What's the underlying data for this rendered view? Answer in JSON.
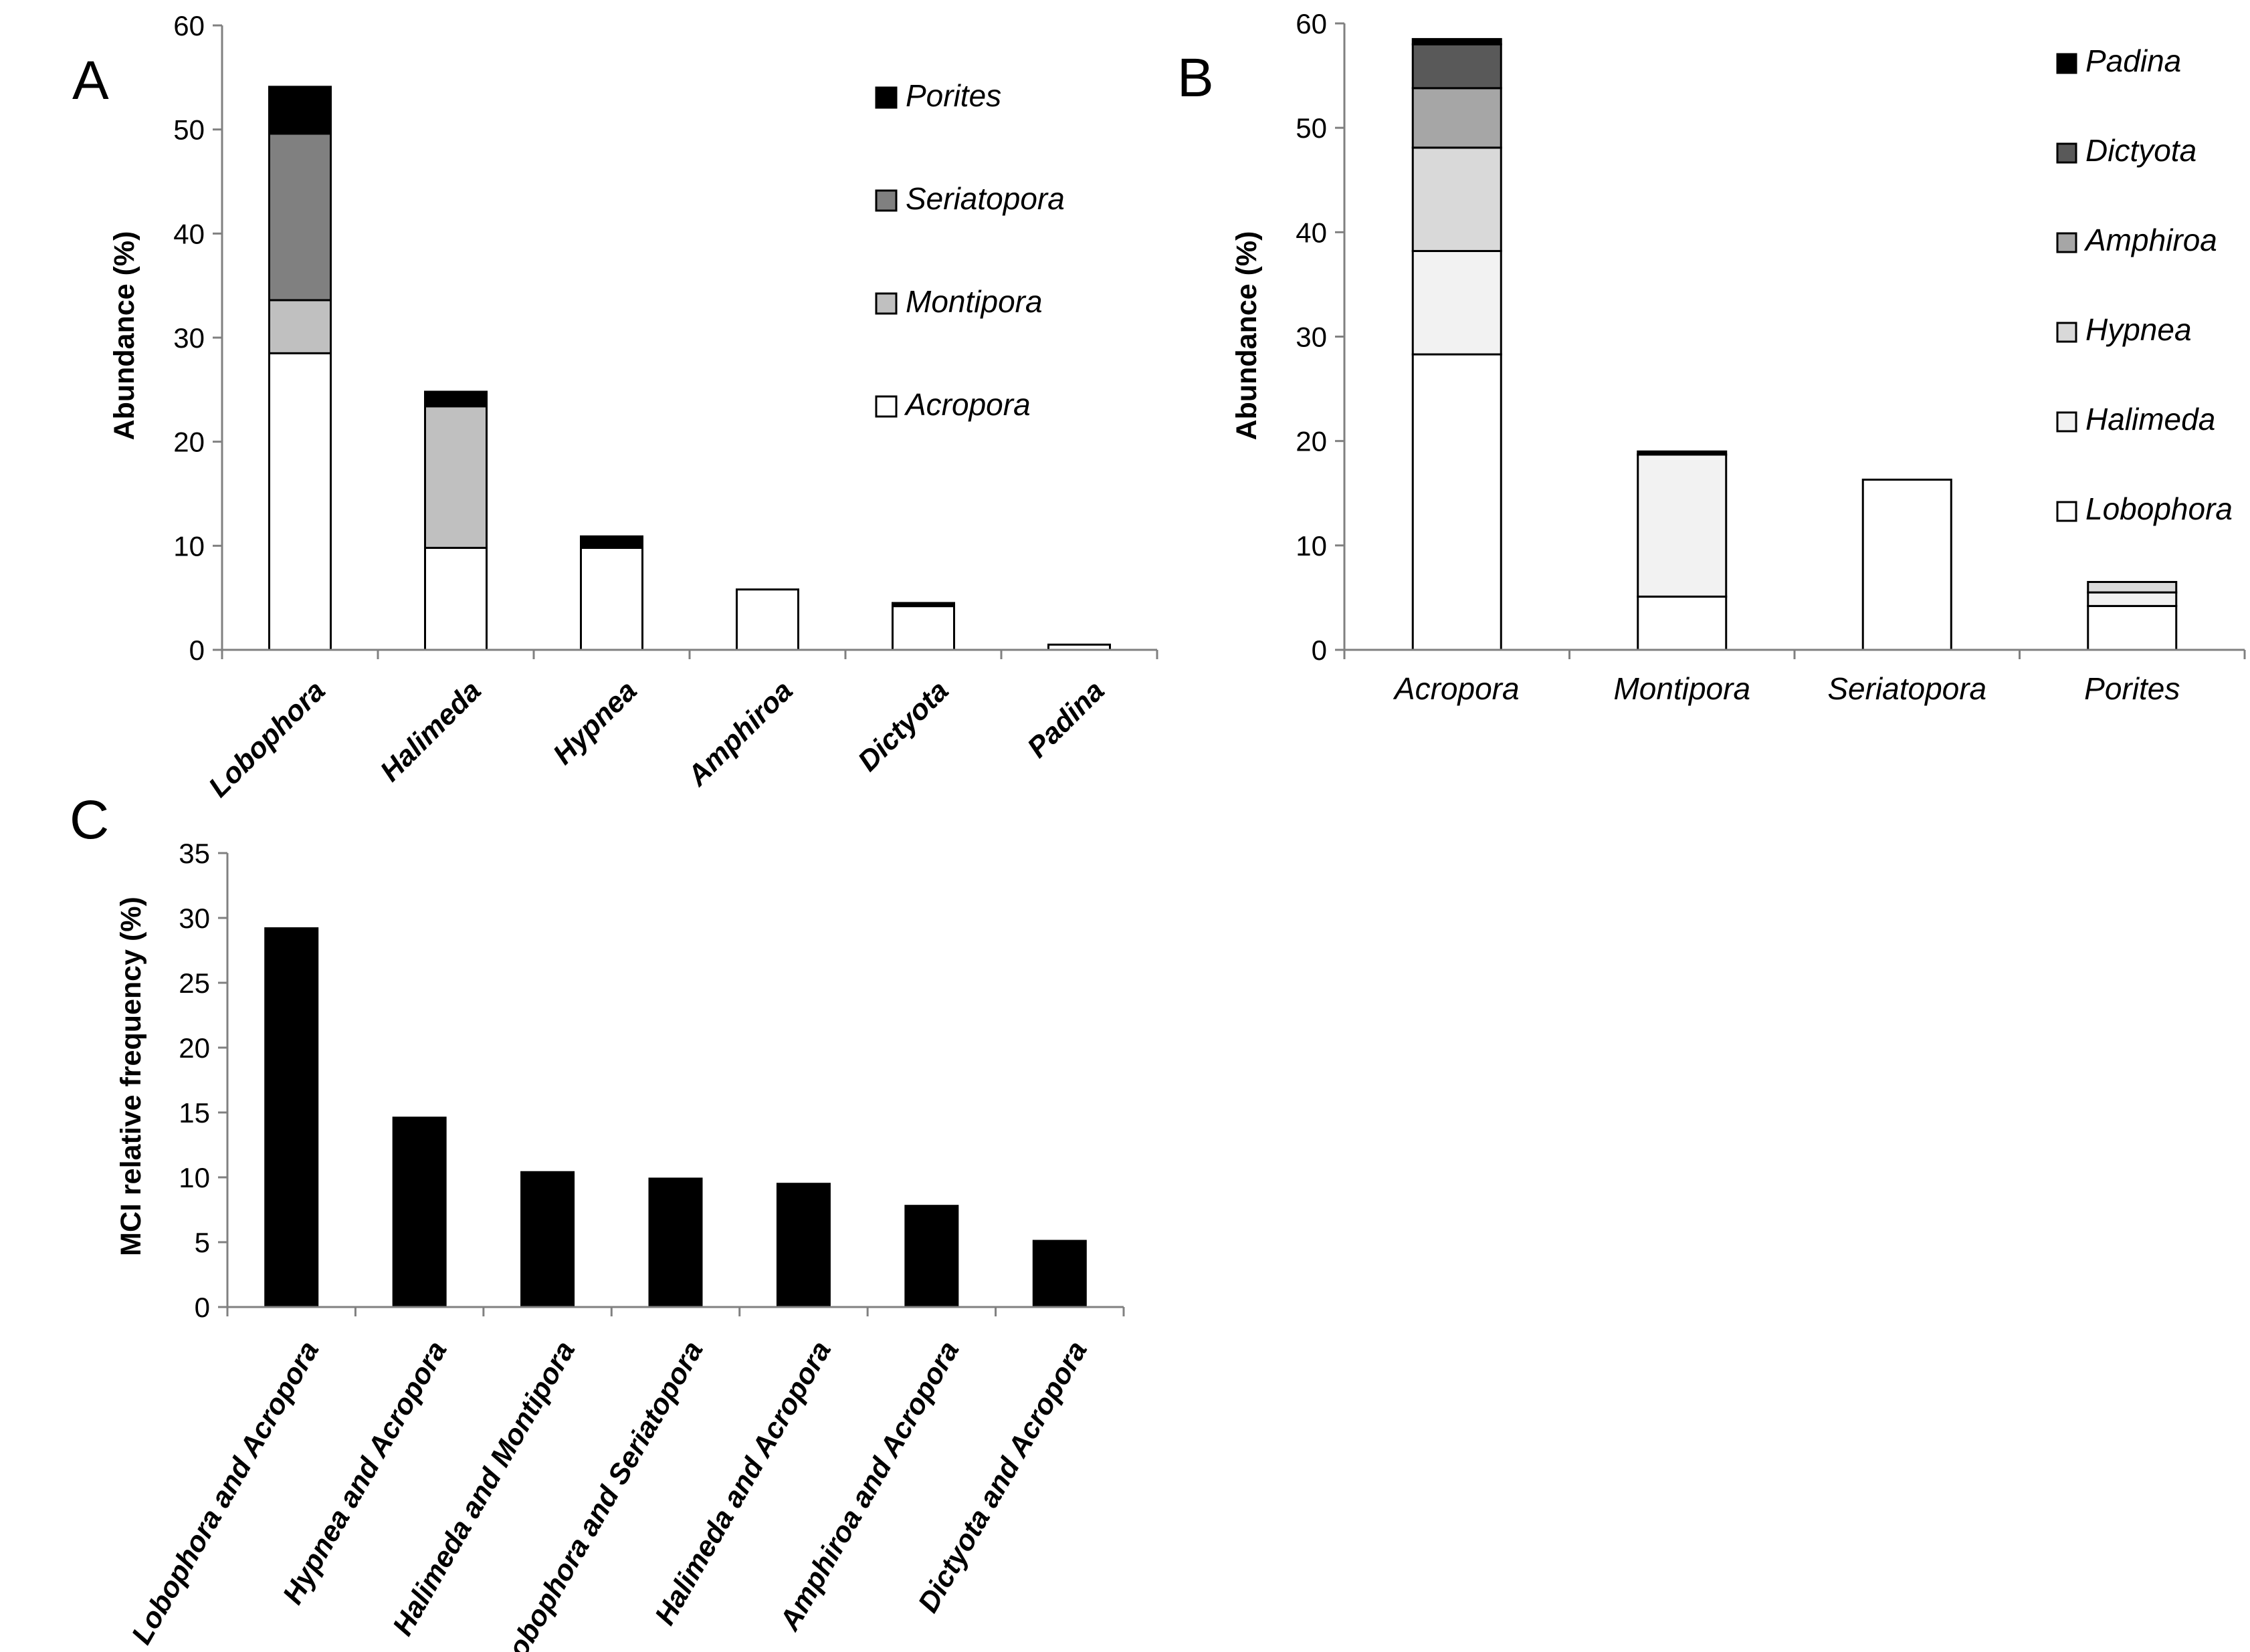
{
  "colors": {
    "Acropora": "#ffffff",
    "Montipora": "#c0c0c0",
    "Seriatopora": "#808080",
    "Porites": "#000000",
    "Lobophora": "#ffffff",
    "Halimeda": "#f2f2f2",
    "Hypnea": "#d9d9d9",
    "Amphiroa": "#a6a6a6",
    "Dictyota": "#595959",
    "Padina": "#000000",
    "MCI": "#000000"
  },
  "chart_data": [
    {
      "id": "A",
      "panel_label": "A",
      "type": "bar",
      "stacked": true,
      "title": "",
      "xlabel": "",
      "ylabel": "Abundance (%)",
      "ylim": [
        0,
        60
      ],
      "yticks": [
        0,
        10,
        20,
        30,
        40,
        50,
        60
      ],
      "categories": [
        "Lobophora",
        "Halimeda",
        "Hypnea",
        "Amphiroa",
        "Dictyota",
        "Padina"
      ],
      "series": [
        {
          "name": "Acropora",
          "values": [
            28.5,
            9.8,
            9.8,
            5.8,
            4.2,
            0.5
          ]
        },
        {
          "name": "Montipora",
          "values": [
            5.1,
            13.6,
            0,
            0,
            0,
            0
          ]
        },
        {
          "name": "Seriatopora",
          "values": [
            16.0,
            0,
            0,
            0,
            0,
            0
          ]
        },
        {
          "name": "Porites",
          "values": [
            4.5,
            1.4,
            1.1,
            0,
            0.3,
            0
          ]
        }
      ],
      "legend": [
        "Porites",
        "Seriatopora",
        "Montipora",
        "Acropora"
      ],
      "legend_position": "top-right",
      "grid": false
    },
    {
      "id": "B",
      "panel_label": "B",
      "type": "bar",
      "stacked": true,
      "title": "",
      "xlabel": "",
      "ylabel": "Abundance (%)",
      "ylim": [
        0,
        60
      ],
      "yticks": [
        0,
        10,
        20,
        30,
        40,
        50,
        60
      ],
      "categories": [
        "Acropora",
        "Montipora",
        "Seriatopora",
        "Porites"
      ],
      "series": [
        {
          "name": "Lobophora",
          "values": [
            28.3,
            5.1,
            16.3,
            4.2
          ]
        },
        {
          "name": "Halimeda",
          "values": [
            9.9,
            13.6,
            0,
            1.3
          ]
        },
        {
          "name": "Hypnea",
          "values": [
            9.9,
            0,
            0,
            1.0
          ]
        },
        {
          "name": "Amphiroa",
          "values": [
            5.7,
            0,
            0,
            0
          ]
        },
        {
          "name": "Dictyota",
          "values": [
            4.2,
            0,
            0,
            0
          ]
        },
        {
          "name": "Padina",
          "values": [
            0.5,
            0.3,
            0,
            0
          ]
        }
      ],
      "legend": [
        "Padina",
        "Dictyota",
        "Amphiroa",
        "Hypnea",
        "Halimeda",
        "Lobophora"
      ],
      "legend_position": "top-right",
      "grid": false
    },
    {
      "id": "C",
      "panel_label": "C",
      "type": "bar",
      "stacked": false,
      "title": "",
      "xlabel": "",
      "ylabel": "MCI relative frequency (%)",
      "ylim": [
        0,
        35
      ],
      "yticks": [
        0,
        5,
        10,
        15,
        20,
        25,
        30,
        35
      ],
      "categories": [
        "Lobophora and Acropora",
        "Hypnea and Acropora",
        "Halimeda and Montipora",
        "Lobophora and Seriatopora",
        "Halimeda and Acropora",
        "Amphiroa and Acropora",
        "Dictyota and Acropora"
      ],
      "series": [
        {
          "name": "MCI",
          "values": [
            29.2,
            14.6,
            10.4,
            9.9,
            9.5,
            7.8,
            5.1
          ]
        }
      ],
      "legend": [],
      "grid": false
    }
  ]
}
